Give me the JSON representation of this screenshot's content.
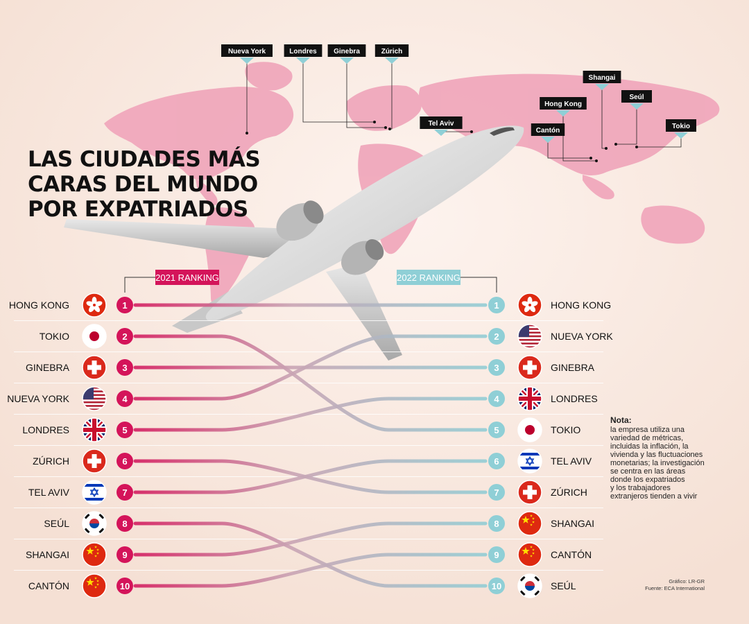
{
  "title_lines": [
    "LAS CIUDADES MÁS",
    "CARAS DEL MUNDO",
    "POR EXPATRIADOS"
  ],
  "map_labels": [
    "Nueva York",
    "Londres",
    "Ginebra",
    "Zúrich",
    "Shangai",
    "Seúl",
    "Hong Kong",
    "Tel Aviv",
    "Cantón",
    "Tokio"
  ],
  "note": {
    "heading": "Nota:",
    "lines": [
      "la empresa utiliza una",
      "variedad de métricas,",
      "incluidas la inflación, la",
      "vivienda y las fluctuaciones",
      "monetarias; la investigación",
      "se centra en las áreas",
      "donde los expatriados",
      "y los trabajadores",
      "extranjeros tienden a vivir"
    ]
  },
  "credits": {
    "graphic": "Gráfico: LR-GR",
    "source": "Fuente: ECA International"
  },
  "colors": {
    "ranking_2021": "#d4145a",
    "ranking_2022": "#8fcfd6",
    "map": "#f0a8bc",
    "background": "#f7e6dc"
  },
  "chart_data": {
    "type": "slope",
    "series": [
      {
        "name": "2021 RANKING",
        "categories": [
          "HONG KONG",
          "TOKIO",
          "GINEBRA",
          "NUEVA YORK",
          "LONDRES",
          "ZÚRICH",
          "TEL AVIV",
          "SEÚL",
          "SHANGAI",
          "CANTÓN"
        ]
      },
      {
        "name": "2022 RANKING",
        "categories": [
          "HONG KONG",
          "NUEVA YORK",
          "GINEBRA",
          "LONDRES",
          "TOKIO",
          "TEL AVIV",
          "ZÚRICH",
          "SHANGAI",
          "CANTÓN",
          "SEÚL"
        ]
      }
    ],
    "ranks": [
      1,
      2,
      3,
      4,
      5,
      6,
      7,
      8,
      9,
      10
    ],
    "flags": {
      "HONG KONG": "hong-kong-flag",
      "TOKIO": "japan-flag",
      "GINEBRA": "switzerland-flag",
      "NUEVA YORK": "usa-flag",
      "LONDRES": "uk-flag",
      "ZÚRICH": "switzerland-flag",
      "TEL AVIV": "israel-flag",
      "SEÚL": "south-korea-flag",
      "SHANGAI": "china-flag",
      "CANTÓN": "china-flag"
    }
  }
}
